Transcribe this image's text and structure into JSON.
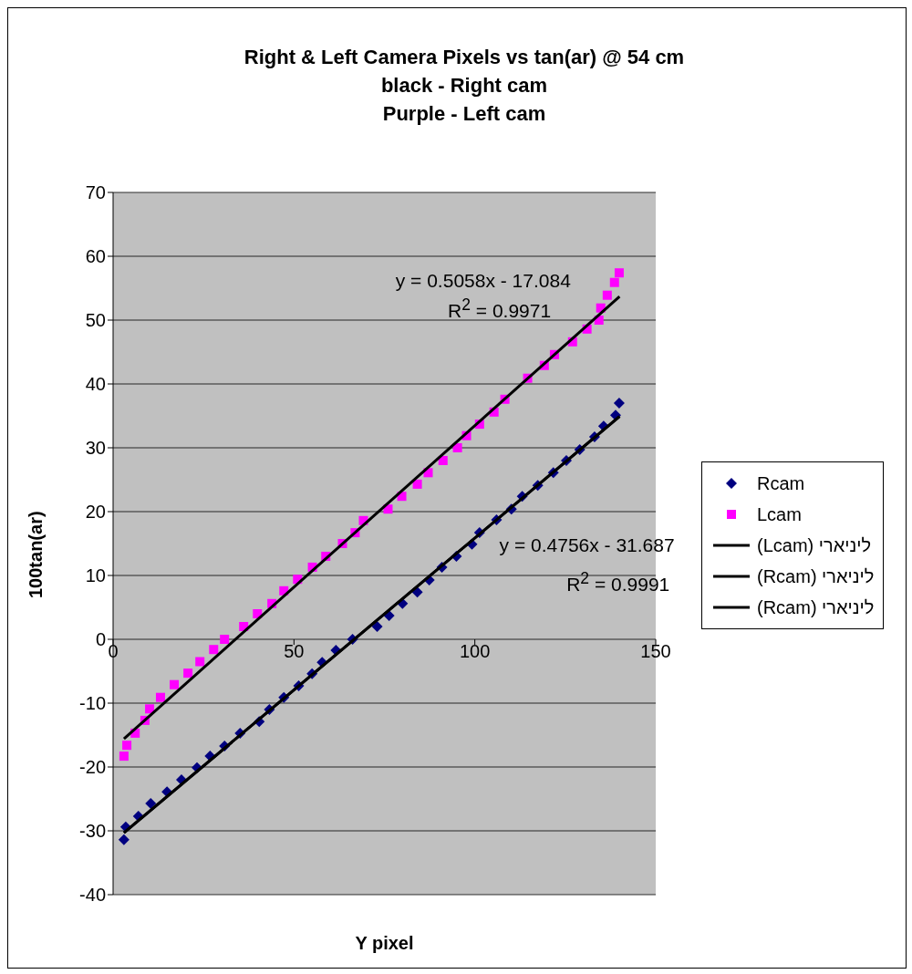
{
  "chart_data": {
    "type": "scatter",
    "title": "Right & Left Camera Pixels vs tan(ar) @ 54 cm",
    "subtitle": "black - Right cam\nPurple - Left cam",
    "xlabel": "Y pixel",
    "ylabel": "100tan(ar)",
    "xlim": [
      0,
      150
    ],
    "xticks": [
      0,
      50,
      100,
      150
    ],
    "ylim": [
      -40,
      70
    ],
    "yticks": [
      -40,
      -30,
      -20,
      -10,
      0,
      10,
      20,
      30,
      40,
      50,
      60,
      70
    ],
    "grid": "y",
    "legend": "right",
    "series": [
      {
        "name": "Rcam",
        "marker": "diamond",
        "color": "#000080",
        "x": [
          3,
          3.5,
          7,
          10.4,
          14.9,
          18.9,
          23.2,
          26.8,
          30.8,
          35.1,
          40.4,
          43.2,
          47.2,
          51.3,
          55,
          57.8,
          61.6,
          66.2,
          73,
          76.3,
          80,
          84.1,
          87.4,
          90.9,
          94.9,
          99.2,
          101.3,
          106,
          110.1,
          113.1,
          117.4,
          121.7,
          125.3,
          129,
          133.1,
          135.6,
          138.9,
          139.9
        ],
        "values": [
          -31.4,
          -29.4,
          -27.7,
          -25.7,
          -23.9,
          -22,
          -20.1,
          -18.3,
          -16.7,
          -14.7,
          -12.9,
          -11,
          -9.1,
          -7.3,
          -5.4,
          -3.6,
          -1.7,
          0,
          2,
          3.7,
          5.6,
          7.4,
          9.3,
          11.3,
          13,
          14.9,
          16.7,
          18.7,
          20.4,
          22.4,
          24.1,
          26.1,
          28,
          29.7,
          31.7,
          33.4,
          35.1,
          37
        ]
      },
      {
        "name": "Lcam",
        "marker": "square",
        "color": "#ff00ff",
        "x": [
          3,
          3.8,
          6.1,
          8.8,
          10.1,
          13.1,
          16.9,
          20.7,
          24,
          27.8,
          30.8,
          36.1,
          39.9,
          43.9,
          47.2,
          51,
          55.1,
          58.8,
          63.4,
          66.9,
          69.2,
          76,
          79.8,
          84.1,
          87.1,
          91.2,
          95.2,
          97.7,
          101.3,
          105.3,
          108.3,
          114.6,
          119.2,
          122,
          127,
          131,
          134.3,
          134.8,
          136.6,
          138.6,
          139.9
        ],
        "values": [
          -18.3,
          -16.6,
          -14.7,
          -12.7,
          -10.9,
          -9.1,
          -7.1,
          -5.3,
          -3.5,
          -1.6,
          0,
          2,
          4,
          5.6,
          7.6,
          9.4,
          11.3,
          13,
          15,
          16.7,
          18.6,
          20.4,
          22.4,
          24.3,
          26.1,
          28,
          30,
          31.9,
          33.7,
          35.6,
          37.6,
          40.9,
          42.9,
          44.6,
          46.6,
          48.6,
          50,
          51.9,
          53.9,
          55.9,
          57.4
        ]
      },
      {
        "name": "ליניארי (Lcam)",
        "type": "line",
        "marker": "none",
        "line_style": "solid",
        "color": "#000000",
        "x": [
          3,
          140
        ],
        "values": [
          -15.6,
          53.7
        ]
      },
      {
        "name": "ליניארי (Rcam)",
        "type": "line",
        "marker": "none",
        "line_style": "solid",
        "color": "#000000",
        "x": [
          3,
          140
        ],
        "values": [
          -30.3,
          34.9
        ]
      },
      {
        "name": "ליניארי (Rcam)",
        "type": "line",
        "marker": "none",
        "line_style": "solid",
        "color": "#000000",
        "x": [
          3,
          140
        ],
        "values": [
          -30.3,
          34.9
        ]
      }
    ],
    "annotations": [
      "y = 0.5058x - 17.084",
      "R$^{2}$ = 0.9971",
      "y = 0.4756x - 31.687",
      "R$^{2}$ = 0.9991"
    ]
  }
}
